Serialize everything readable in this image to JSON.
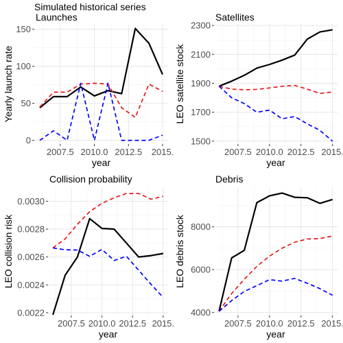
{
  "header": {
    "title": "Simulated historical series"
  },
  "chart_data": [
    {
      "type": "line",
      "title": "Launches",
      "xlabel": "year",
      "ylabel": "Yearly launch rate",
      "xlim": [
        2005.6,
        2015.4
      ],
      "ylim": [
        -5,
        157
      ],
      "xticks": [
        2007.5,
        2010.0,
        2012.5,
        2015.0
      ],
      "xtick_labels": [
        "2007.5",
        "2010.0",
        "2012.5",
        "2015."
      ],
      "yticks": [
        0,
        50,
        100,
        150
      ],
      "ytick_labels": [
        "0",
        "50",
        "100",
        "150"
      ],
      "grid": true,
      "x": [
        2006,
        2007,
        2008,
        2009,
        2010,
        2011,
        2012,
        2013,
        2014,
        2015
      ],
      "series": [
        {
          "color": "#000000",
          "dash": "solid",
          "values": [
            44,
            59,
            59,
            72,
            60,
            67,
            63,
            151,
            131,
            89
          ]
        },
        {
          "color": "#e41a1c",
          "dash": "dashed",
          "values": [
            45,
            65,
            65,
            76,
            77,
            76,
            44,
            31,
            76,
            66
          ]
        },
        {
          "color": "#0000ff",
          "dash": "dashed",
          "values": [
            0,
            13,
            0,
            77,
            0,
            77,
            0,
            0,
            0,
            7
          ]
        }
      ]
    },
    {
      "type": "line",
      "title": "Satellites",
      "xlabel": "year",
      "ylabel": "LEO satellite stock",
      "xlim": [
        2005.6,
        2015.4
      ],
      "ylim": [
        1480,
        2310
      ],
      "xticks": [
        2007.5,
        2010.0,
        2012.5,
        2015.0
      ],
      "xtick_labels": [
        "2007.5",
        "2010.0",
        "2012.5",
        "2015."
      ],
      "yticks": [
        1500,
        1700,
        1900,
        2100,
        2300
      ],
      "ytick_labels": [
        "1500",
        "1700",
        "1900",
        "2100",
        "2300"
      ],
      "grid": true,
      "x": [
        2006,
        2007,
        2008,
        2009,
        2010,
        2011,
        2012,
        2013,
        2014,
        2015
      ],
      "series": [
        {
          "color": "#000000",
          "dash": "solid",
          "values": [
            1880,
            1915,
            1955,
            2005,
            2030,
            2060,
            2095,
            2205,
            2255,
            2270
          ]
        },
        {
          "color": "#e41a1c",
          "dash": "dashed",
          "values": [
            1880,
            1860,
            1855,
            1858,
            1868,
            1880,
            1885,
            1860,
            1830,
            1840
          ]
        },
        {
          "color": "#0000ff",
          "dash": "dashed",
          "values": [
            1880,
            1800,
            1760,
            1700,
            1715,
            1655,
            1670,
            1620,
            1575,
            1500
          ]
        }
      ]
    },
    {
      "type": "line",
      "title": "Collision probability",
      "xlabel": "year",
      "ylabel": "LEO collision risk",
      "xlim": [
        2005.6,
        2015.4
      ],
      "ylim": [
        0.00218,
        0.0031
      ],
      "xticks": [
        2007.5,
        2010.0,
        2012.5,
        2015.0
      ],
      "xtick_labels": [
        "2007.5",
        "2010.0",
        "2012.5",
        "2015."
      ],
      "yticks": [
        0.0022,
        0.0024,
        0.0026,
        0.0028,
        0.003
      ],
      "ytick_labels": [
        "0.0022",
        "0.0024",
        "0.0026",
        "0.0028",
        "0.0030"
      ],
      "grid": true,
      "x": [
        2006,
        2007,
        2008,
        2009,
        2010,
        2011,
        2012,
        2013,
        2014,
        2015
      ],
      "series": [
        {
          "color": "#000000",
          "dash": "solid",
          "values": [
            0.002185,
            0.00247,
            0.0026,
            0.002875,
            0.002805,
            0.0028,
            0.0027,
            0.0026,
            0.00261,
            0.002625
          ]
        },
        {
          "color": "#e41a1c",
          "dash": "dashed",
          "values": [
            0.002665,
            0.00273,
            0.002835,
            0.002925,
            0.002985,
            0.003025,
            0.003055,
            0.003055,
            0.003015,
            0.003035
          ]
        },
        {
          "color": "#0000ff",
          "dash": "dashed",
          "values": [
            0.002665,
            0.002652,
            0.00265,
            0.002605,
            0.002655,
            0.002575,
            0.002605,
            0.002505,
            0.002405,
            0.00231
          ]
        }
      ]
    },
    {
      "type": "line",
      "title": "Debris",
      "xlabel": "year",
      "ylabel": "LEO debris stock",
      "xlim": [
        2005.6,
        2015.4
      ],
      "ylim": [
        3850,
        9850
      ],
      "xticks": [
        2007.5,
        2010.0,
        2012.5,
        2015.0
      ],
      "xtick_labels": [
        "2007.5",
        "2010.0",
        "2012.5",
        "2015."
      ],
      "yticks": [
        4000,
        6000,
        8000
      ],
      "ytick_labels": [
        "4000",
        "6000",
        "8000"
      ],
      "grid": true,
      "x": [
        2006,
        2007,
        2008,
        2009,
        2010,
        2011,
        2012,
        2013,
        2014,
        2015
      ],
      "series": [
        {
          "color": "#000000",
          "dash": "solid",
          "values": [
            4050,
            6550,
            6900,
            9130,
            9450,
            9580,
            9380,
            9360,
            9100,
            9280
          ]
        },
        {
          "color": "#e41a1c",
          "dash": "dashed",
          "values": [
            4050,
            4880,
            5550,
            6150,
            6630,
            7000,
            7280,
            7430,
            7450,
            7570
          ]
        },
        {
          "color": "#0000ff",
          "dash": "dashed",
          "values": [
            4050,
            4550,
            4980,
            5250,
            5530,
            5460,
            5590,
            5360,
            5110,
            4800
          ]
        }
      ]
    }
  ]
}
